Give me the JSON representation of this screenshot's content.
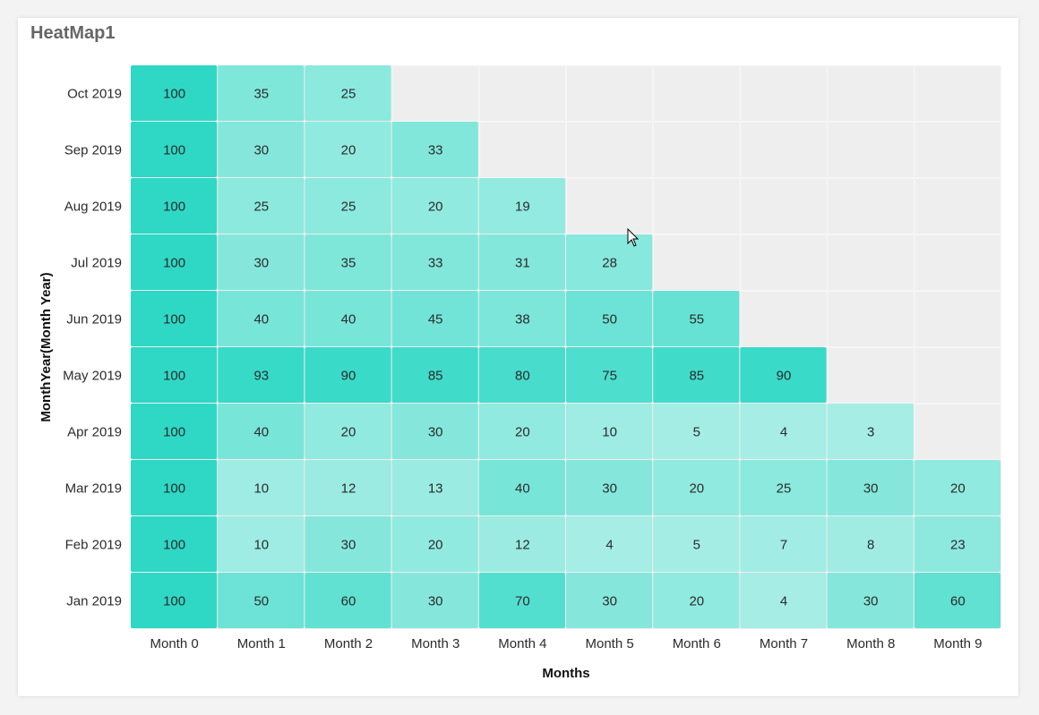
{
  "widget": {
    "title": "HeatMap1"
  },
  "chart_data": {
    "type": "heatmap",
    "xlabel": "Months",
    "ylabel": "MonthYear(Month Year)",
    "x_categories": [
      "Month 0",
      "Month 1",
      "Month 2",
      "Month 3",
      "Month 4",
      "Month 5",
      "Month 6",
      "Month 7",
      "Month 8",
      "Month 9"
    ],
    "y_categories": [
      "Oct 2019",
      "Sep 2019",
      "Aug 2019",
      "Jul 2019",
      "Jun 2019",
      "May 2019",
      "Apr 2019",
      "Mar 2019",
      "Feb 2019",
      "Jan 2019"
    ],
    "values": [
      [
        100,
        35,
        25,
        null,
        null,
        null,
        null,
        null,
        null,
        null
      ],
      [
        100,
        30,
        20,
        33,
        null,
        null,
        null,
        null,
        null,
        null
      ],
      [
        100,
        25,
        25,
        20,
        19,
        null,
        null,
        null,
        null,
        null
      ],
      [
        100,
        30,
        35,
        33,
        31,
        28,
        null,
        null,
        null,
        null
      ],
      [
        100,
        40,
        40,
        45,
        38,
        50,
        55,
        null,
        null,
        null
      ],
      [
        100,
        93,
        90,
        85,
        80,
        75,
        85,
        90,
        null,
        null
      ],
      [
        100,
        40,
        20,
        30,
        20,
        10,
        5,
        4,
        3,
        null
      ],
      [
        100,
        10,
        12,
        13,
        40,
        30,
        20,
        25,
        30,
        20
      ],
      [
        100,
        10,
        30,
        20,
        12,
        4,
        5,
        7,
        8,
        23
      ],
      [
        100,
        50,
        60,
        30,
        70,
        30,
        20,
        4,
        30,
        60
      ]
    ],
    "color_low": "#aaeee6",
    "color_high": "#2ed8c5",
    "empty_color": "#eeeeee"
  }
}
